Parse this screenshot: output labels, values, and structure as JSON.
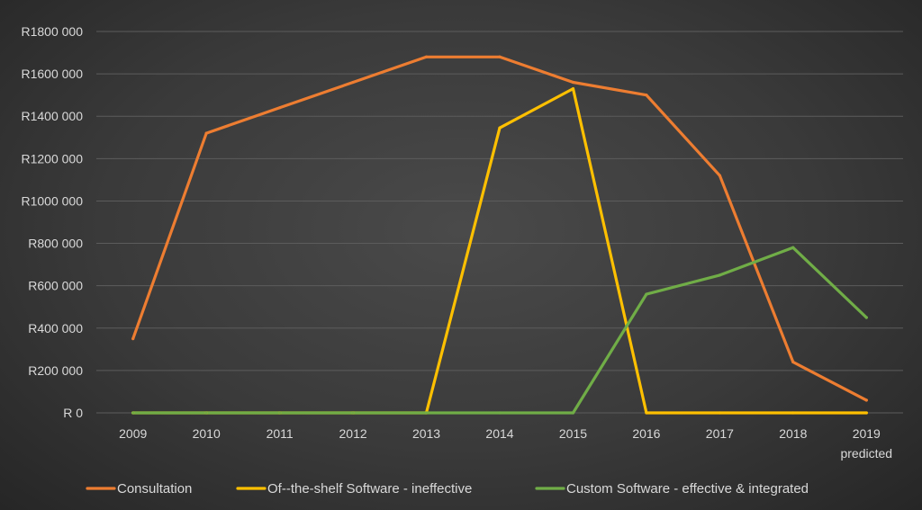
{
  "chart_data": {
    "type": "line",
    "categories": [
      "2009",
      "2010",
      "2011",
      "2012",
      "2013",
      "2014",
      "2015",
      "2016",
      "2017",
      "2018",
      "2019 predicted"
    ],
    "category_lines": [
      [
        "2009"
      ],
      [
        "2010"
      ],
      [
        "2011"
      ],
      [
        "2012"
      ],
      [
        "2013"
      ],
      [
        "2014"
      ],
      [
        "2015"
      ],
      [
        "2016"
      ],
      [
        "2017"
      ],
      [
        "2018"
      ],
      [
        "2019",
        "predicted"
      ]
    ],
    "y_ticks": [
      0,
      200000,
      400000,
      600000,
      800000,
      1000000,
      1200000,
      1400000,
      1600000,
      1800000
    ],
    "y_tick_labels": [
      "R 0",
      "R200 000",
      "R400 000",
      "R600 000",
      "R800 000",
      "R1000 000",
      "R1200 000",
      "R1400 000",
      "R1600 000",
      "R1800 000"
    ],
    "ylim": [
      0,
      1800000
    ],
    "grid": true,
    "legend_position": "bottom",
    "series": [
      {
        "name": "Consultation",
        "color": "#ED7D31",
        "values": [
          350000,
          1320000,
          1440000,
          1560000,
          1680000,
          1680000,
          1560000,
          1500000,
          1120000,
          240000,
          60000
        ]
      },
      {
        "name": "Of--the-shelf Software - ineffective",
        "color": "#FFC000",
        "values": [
          0,
          0,
          0,
          0,
          0,
          1345000,
          1530000,
          0,
          0,
          0,
          0
        ]
      },
      {
        "name": "Custom Software - effective & integrated",
        "color": "#70AD47",
        "values": [
          0,
          0,
          0,
          0,
          0,
          0,
          0,
          560000,
          650000,
          780000,
          450000
        ]
      }
    ]
  }
}
